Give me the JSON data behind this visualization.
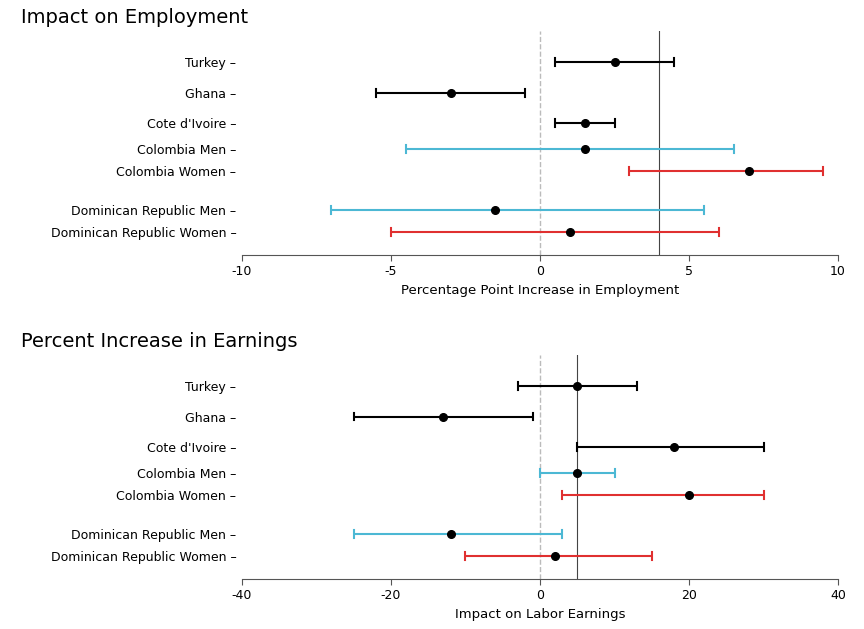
{
  "panel1": {
    "title": "Impact on Employment",
    "xlabel": "Percentage Point Increase in Employment",
    "xlim": [
      -10,
      10
    ],
    "xticks": [
      -10,
      -5,
      0,
      5,
      10
    ],
    "vline_solid": 4.0,
    "vline_dashed": 0,
    "entries": [
      {
        "label": "Turkey",
        "value": 2.5,
        "lo": 0.5,
        "hi": 4.5,
        "color": "black",
        "y": 7
      },
      {
        "label": "Ghana",
        "value": -3.0,
        "lo": -5.5,
        "hi": -0.5,
        "color": "black",
        "y": 6
      },
      {
        "label": "Cote d'Ivoire",
        "value": 1.5,
        "lo": 0.5,
        "hi": 2.5,
        "color": "black",
        "y": 5
      },
      {
        "label": "Colombia Men",
        "value": 1.5,
        "lo": -4.5,
        "hi": 6.5,
        "color": "#4cb8d4",
        "y": 4.15
      },
      {
        "label": "Colombia Women",
        "value": 7.0,
        "lo": 3.0,
        "hi": 9.5,
        "color": "#e03030",
        "y": 3.45
      },
      {
        "label": "Dominican Republic Men",
        "value": -1.5,
        "lo": -7.0,
        "hi": 5.5,
        "color": "#4cb8d4",
        "y": 2.15
      },
      {
        "label": "Dominican Republic Women",
        "value": 1.0,
        "lo": -5.0,
        "hi": 6.0,
        "color": "#e03030",
        "y": 1.45
      }
    ]
  },
  "panel2": {
    "title": "Percent Increase in Earnings",
    "xlabel": "Impact on Labor Earnings",
    "xlim": [
      -40,
      40
    ],
    "xticks": [
      -40,
      -20,
      0,
      20,
      40
    ],
    "vline_solid": 5.0,
    "vline_dashed": 0,
    "entries": [
      {
        "label": "Turkey",
        "value": 5.0,
        "lo": -3.0,
        "hi": 13.0,
        "color": "black",
        "y": 7
      },
      {
        "label": "Ghana",
        "value": -13.0,
        "lo": -25.0,
        "hi": -1.0,
        "color": "black",
        "y": 6
      },
      {
        "label": "Cote d'Ivoire",
        "value": 18.0,
        "lo": 5.0,
        "hi": 30.0,
        "color": "black",
        "y": 5
      },
      {
        "label": "Colombia Men",
        "value": 5.0,
        "lo": 0.0,
        "hi": 10.0,
        "color": "#4cb8d4",
        "y": 4.15
      },
      {
        "label": "Colombia Women",
        "value": 20.0,
        "lo": 3.0,
        "hi": 30.0,
        "color": "#e03030",
        "y": 3.45
      },
      {
        "label": "Dominican Republic Men",
        "value": -12.0,
        "lo": -25.0,
        "hi": 3.0,
        "color": "#4cb8d4",
        "y": 2.15
      },
      {
        "label": "Dominican Republic Women",
        "value": 2.0,
        "lo": -10.0,
        "hi": 15.0,
        "color": "#e03030",
        "y": 1.45
      }
    ]
  },
  "background_color": "#ffffff",
  "title_fontsize": 14,
  "label_fontsize": 9,
  "tick_fontsize": 9,
  "xlabel_fontsize": 9.5
}
